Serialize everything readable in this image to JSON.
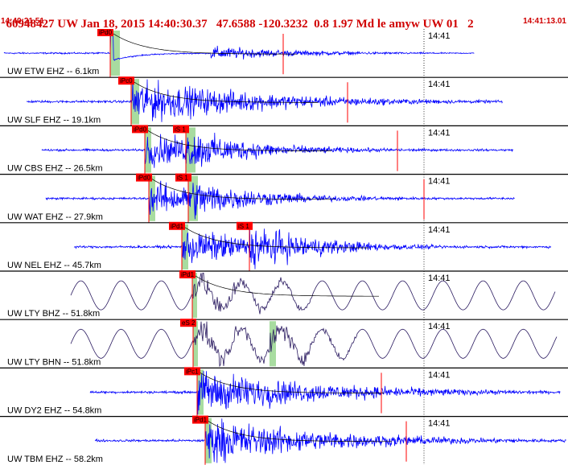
{
  "header": {
    "title": "60948427 UW Jan 18, 2015 14:40:30.37   47.6588 -120.3232  0.8 1.97 Md le amyw UW 01   2",
    "start_time": "14:40:21.51",
    "end_time": "14:41:13.01"
  },
  "chart_data": {
    "type": "line",
    "title": "60948427 UW Jan 18, 2015 14:40:30.37   47.6588 -120.3232  0.8 1.97 Md le amyw UW 01   2",
    "x_start": "14:40:21.51",
    "x_end": "14:41:13.01",
    "time_tick_label": "14:41",
    "colors": {
      "trace": "#0000ff",
      "trace_bh": "#2a1a60",
      "pick_box": "#ff0000",
      "pick_window": "#a8dca0",
      "axis": "#000000"
    },
    "traces": [
      {
        "label": "UW ETW EHZ -- 6.1km",
        "channel": "EHZ",
        "distance_km": 6.1,
        "picks": [
          {
            "label": "iPd0"
          }
        ],
        "amplitude": "pulse"
      },
      {
        "label": "UW SLF EHZ -- 19.1km",
        "channel": "EHZ",
        "distance_km": 19.1,
        "picks": [
          {
            "label": "iPc0"
          }
        ],
        "amplitude": "high"
      },
      {
        "label": "UW CBS EHZ -- 26.5km",
        "channel": "EHZ",
        "distance_km": 26.5,
        "picks": [
          {
            "label": "iPd0"
          },
          {
            "label": "iS 1"
          }
        ],
        "amplitude": "medium"
      },
      {
        "label": "UW WAT EHZ -- 27.9km",
        "channel": "EHZ",
        "distance_km": 27.9,
        "picks": [
          {
            "label": "iPd0"
          },
          {
            "label": "iS 1"
          }
        ],
        "amplitude": "medium"
      },
      {
        "label": "UW NEL EHZ -- 45.7km",
        "channel": "EHZ",
        "distance_km": 45.7,
        "picks": [
          {
            "label": "iPd1"
          },
          {
            "label": "iS 1"
          }
        ],
        "amplitude": "high"
      },
      {
        "label": "UW LTY BHZ -- 51.8km",
        "channel": "BHZ",
        "distance_km": 51.8,
        "picks": [
          {
            "label": "iPd1"
          }
        ],
        "amplitude": "longperiod"
      },
      {
        "label": "UW LTY BHN -- 51.8km",
        "channel": "BHN",
        "distance_km": 51.8,
        "picks": [
          {
            "label": "eS 2"
          }
        ],
        "amplitude": "longperiod"
      },
      {
        "label": "UW DY2 EHZ -- 54.8km",
        "channel": "EHZ",
        "distance_km": 54.8,
        "picks": [
          {
            "label": "iPc1"
          }
        ],
        "amplitude": "high"
      },
      {
        "label": "UW TBM EHZ -- 58.2km",
        "channel": "EHZ",
        "distance_km": 58.2,
        "picks": [
          {
            "label": "iPd1"
          }
        ],
        "amplitude": "high"
      }
    ]
  }
}
